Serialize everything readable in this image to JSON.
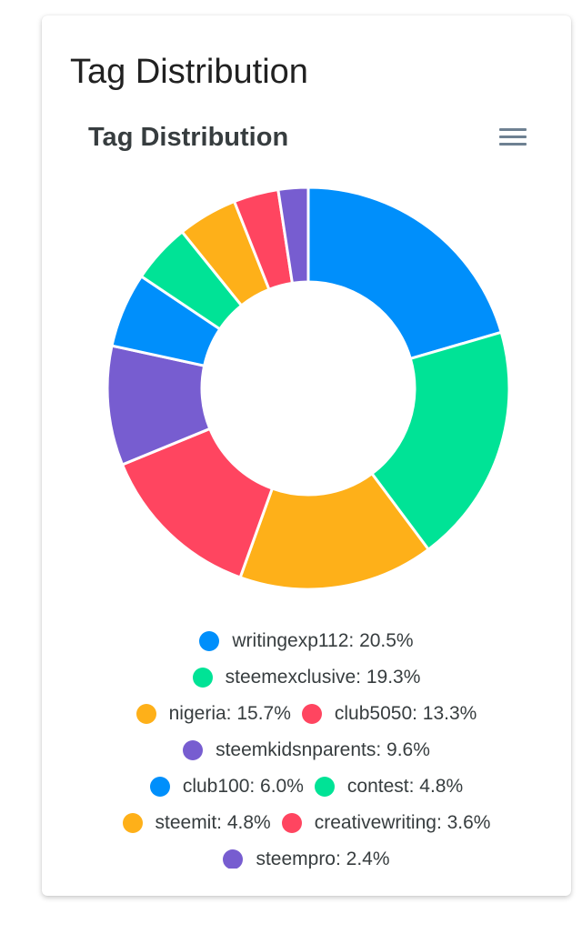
{
  "card": {
    "title": "Tag Distribution"
  },
  "chart_data": {
    "type": "donut",
    "title": "Tag Distribution",
    "legend_position": "bottom",
    "labels": [
      "writingexp112",
      "steemexclusive",
      "nigeria",
      "club5050",
      "steemkidsnparents",
      "club100",
      "contest",
      "steemit",
      "creativewriting",
      "steempro"
    ],
    "values": [
      20.5,
      19.3,
      15.7,
      13.3,
      9.6,
      6.0,
      4.8,
      4.8,
      3.6,
      2.4
    ],
    "colors": [
      "#008ffb",
      "#00e396",
      "#feb019",
      "#ff4560",
      "#775dd0",
      "#008ffb",
      "#00e396",
      "#feb019",
      "#ff4560",
      "#775dd0"
    ],
    "legend_entries": [
      "writingexp112: 20.5%",
      "steemexclusive: 19.3%",
      "nigeria: 15.7%",
      "club5050: 13.3%",
      "steemkidsnparents: 9.6%",
      "club100: 6.0%",
      "contest: 4.8%",
      "steemit: 4.8%",
      "creativewriting: 3.6%",
      "steempro: 2.4%"
    ]
  },
  "icons": {
    "menu": "hamburger-menu-icon"
  }
}
